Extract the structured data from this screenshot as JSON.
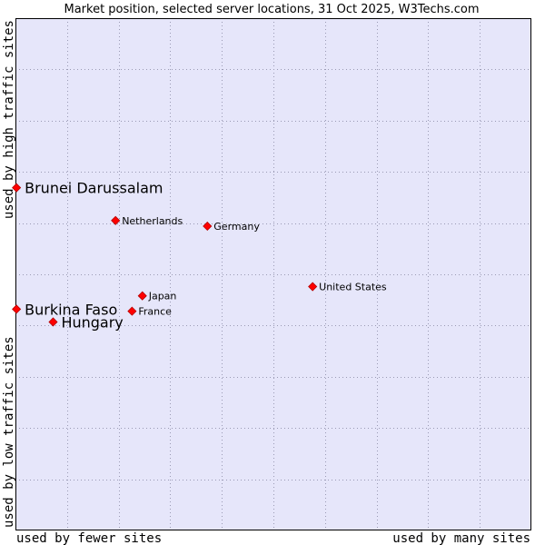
{
  "chart_data": {
    "type": "scatter",
    "title": "Market position, selected server locations, 31 Oct 2025, W3Techs.com",
    "xlabel_low": "used by fewer sites",
    "xlabel_high": "used by many sites",
    "ylabel_low": "used by low traffic sites",
    "ylabel_high": "used by high traffic sites",
    "xlim": [
      0,
      100
    ],
    "ylim": [
      0,
      100
    ],
    "grid": true,
    "colors": {
      "plot_bg": "#e6e6fa",
      "grid": "#9a9ab4",
      "marker": "#ff0000",
      "marker_edge": "#b40000",
      "border": "#000000"
    },
    "points": [
      {
        "label": "Brunei Darussalam",
        "x": 0.2,
        "y": 66.9,
        "emphasis": true
      },
      {
        "label": "Netherlands",
        "x": 19.4,
        "y": 60.5,
        "emphasis": false
      },
      {
        "label": "Germany",
        "x": 37.2,
        "y": 59.4,
        "emphasis": false
      },
      {
        "label": "United States",
        "x": 57.6,
        "y": 47.6,
        "emphasis": false
      },
      {
        "label": "Japan",
        "x": 24.6,
        "y": 45.8,
        "emphasis": false
      },
      {
        "label": "France",
        "x": 22.6,
        "y": 42.8,
        "emphasis": false
      },
      {
        "label": "Burkina Faso",
        "x": 0.2,
        "y": 43.2,
        "emphasis": true
      },
      {
        "label": "Hungary",
        "x": 7.3,
        "y": 40.7,
        "emphasis": true
      }
    ]
  }
}
